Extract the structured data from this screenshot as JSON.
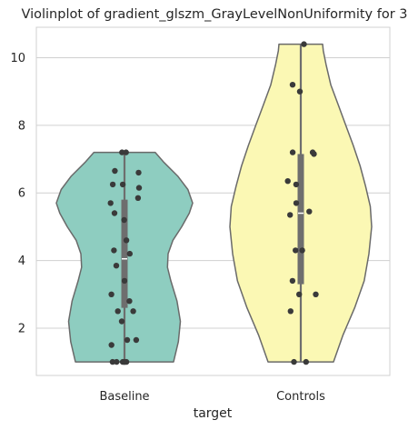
{
  "chart_data": {
    "type": "violin",
    "title": "Violinplot of gradient_glszm_GrayLevelNonUniformity for 3",
    "xlabel": "target",
    "ylabel": "",
    "categories": [
      "Baseline",
      "Controls"
    ],
    "ylim": [
      0.6,
      10.9
    ],
    "yticks": [
      2,
      4,
      6,
      8,
      10
    ],
    "grid": true,
    "colors": {
      "Baseline": "#8ecdc0",
      "Controls": "#fbf8b4",
      "edge": "#6a6a6a",
      "points": "#3a3a3a",
      "box": "#6e6e6e",
      "grid": "#d0d0d0"
    },
    "series": [
      {
        "category": "Baseline",
        "points": [
          1.0,
          1.0,
          1.0,
          1.0,
          1.0,
          1.0,
          1.5,
          1.65,
          1.65,
          2.2,
          2.5,
          2.5,
          2.8,
          3.0,
          3.4,
          3.85,
          4.2,
          4.3,
          4.6,
          5.2,
          5.4,
          5.7,
          5.85,
          6.15,
          6.25,
          6.25,
          6.6,
          6.65,
          7.2,
          7.2
        ],
        "q1": 2.6,
        "median": 4.05,
        "q3": 5.8,
        "whisker_low": 1.0,
        "whisker_high": 7.2,
        "violin_profile": [
          [
            1.0,
            0.72
          ],
          [
            1.6,
            0.79
          ],
          [
            2.2,
            0.82
          ],
          [
            2.8,
            0.77
          ],
          [
            3.4,
            0.68
          ],
          [
            3.8,
            0.63
          ],
          [
            4.2,
            0.64
          ],
          [
            4.6,
            0.71
          ],
          [
            5.0,
            0.84
          ],
          [
            5.4,
            0.95
          ],
          [
            5.7,
            1.0
          ],
          [
            6.1,
            0.93
          ],
          [
            6.5,
            0.78
          ],
          [
            6.9,
            0.58
          ],
          [
            7.2,
            0.45
          ]
        ]
      },
      {
        "category": "Controls",
        "points": [
          1.0,
          1.0,
          2.5,
          3.0,
          3.0,
          3.4,
          4.3,
          4.3,
          5.35,
          5.45,
          5.7,
          6.25,
          6.35,
          7.15,
          7.2,
          7.2,
          9.0,
          9.2,
          10.4
        ],
        "q1": 3.3,
        "median": 5.4,
        "q3": 7.15,
        "whisker_low": 1.0,
        "whisker_high": 10.4,
        "violin_profile": [
          [
            1.0,
            0.48
          ],
          [
            1.8,
            0.62
          ],
          [
            2.6,
            0.79
          ],
          [
            3.4,
            0.93
          ],
          [
            4.2,
            1.0
          ],
          [
            5.0,
            1.04
          ],
          [
            5.6,
            1.02
          ],
          [
            6.2,
            0.95
          ],
          [
            6.8,
            0.87
          ],
          [
            7.4,
            0.77
          ],
          [
            8.0,
            0.66
          ],
          [
            8.6,
            0.55
          ],
          [
            9.2,
            0.44
          ],
          [
            9.8,
            0.37
          ],
          [
            10.2,
            0.33
          ],
          [
            10.4,
            0.32
          ]
        ]
      }
    ]
  }
}
